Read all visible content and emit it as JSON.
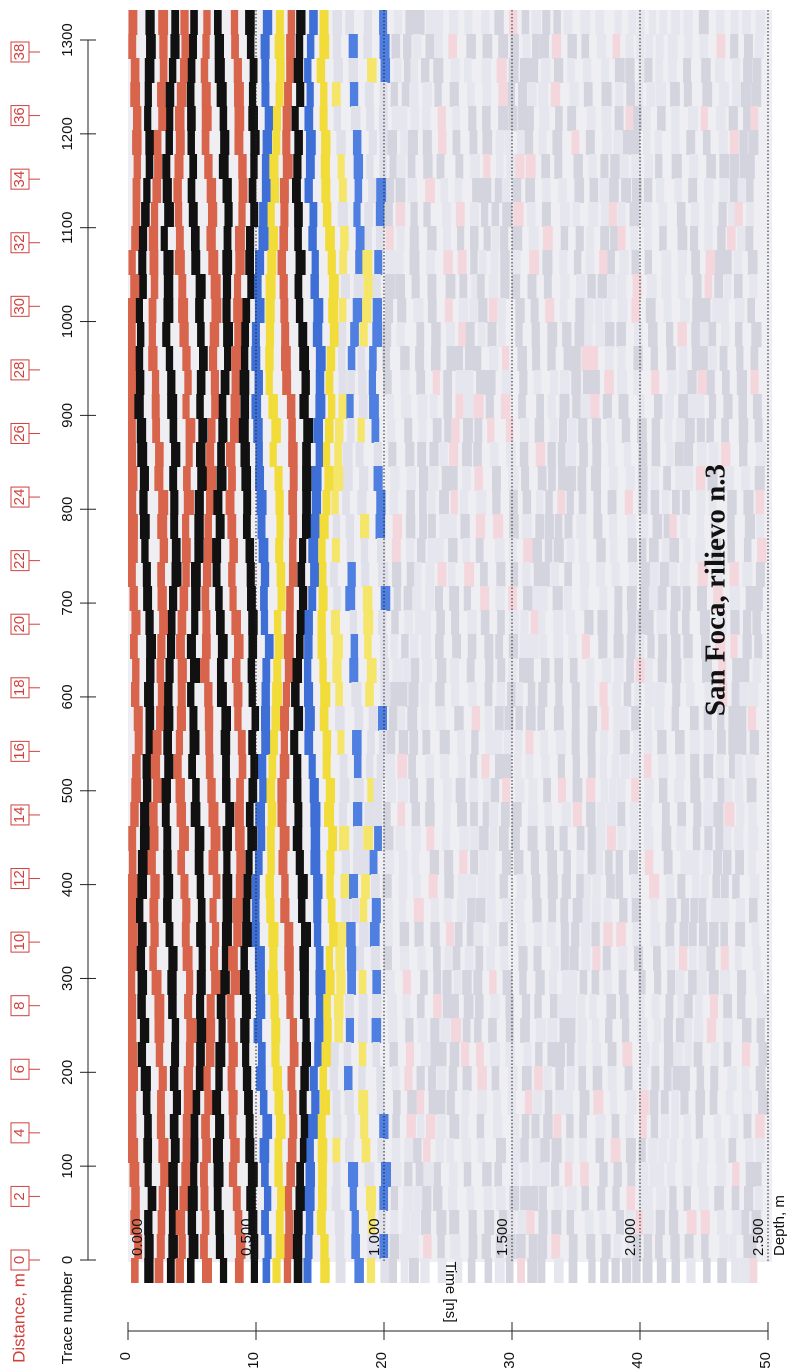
{
  "chart_data": {
    "type": "radargram",
    "title": "San Foca, rilievo n.3",
    "x_label": "Trace number",
    "x2_label": "Distance, m",
    "y_label": "Time [ns]",
    "y2_label": "Depth, m",
    "xlim": [
      0,
      1300
    ],
    "xticks": [
      0,
      100,
      200,
      300,
      400,
      500,
      600,
      700,
      800,
      900,
      1000,
      1100,
      1200,
      1300
    ],
    "x2lim": [
      0,
      38
    ],
    "x2ticks": [
      0,
      2,
      4,
      6,
      8,
      10,
      12,
      14,
      16,
      18,
      20,
      22,
      24,
      26,
      28,
      30,
      32,
      34,
      36,
      38
    ],
    "x2_color": "#d0413e",
    "ylim": [
      0,
      50
    ],
    "yticks": [
      0,
      10,
      20,
      30,
      40,
      50
    ],
    "y2lim": [
      0,
      2.5
    ],
    "y2ticks": [
      {
        "value": 0,
        "label": "0.000"
      },
      {
        "value": 0.5,
        "label": "0.500"
      },
      {
        "value": 1,
        "label": "1.000"
      },
      {
        "value": 1.5,
        "label": "1.500"
      },
      {
        "value": 2,
        "label": "2.000"
      },
      {
        "value": 2.5,
        "label": "2.500"
      }
    ],
    "grid": true
  }
}
